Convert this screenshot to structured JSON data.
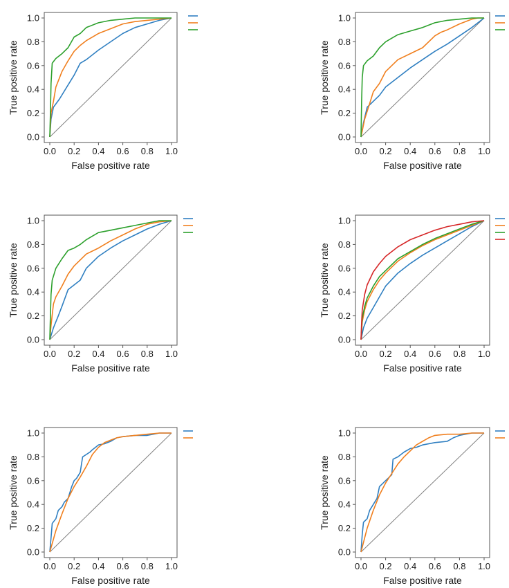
{
  "colors": {
    "blue": "#2f7fc1",
    "orange": "#f07f1e",
    "green": "#2ca02c",
    "red": "#d62728",
    "diagonal": "#808080"
  },
  "chart_data": [
    {
      "type": "line",
      "panel": "top-left",
      "xlabel": "False positive rate",
      "ylabel": "True positive rate",
      "xlim": [
        0,
        1
      ],
      "ylim": [
        0,
        1
      ],
      "xticks": [
        "0.0",
        "0.2",
        "0.4",
        "0.6",
        "0.8",
        "1.0"
      ],
      "yticks": [
        "0.0",
        "0.2",
        "0.4",
        "0.6",
        "0.8",
        "1.0"
      ],
      "grid": false,
      "legend": "right",
      "series": [
        {
          "color": "blue",
          "x": [
            0,
            0.01,
            0.03,
            0.08,
            0.14,
            0.2,
            0.25,
            0.3,
            0.4,
            0.5,
            0.6,
            0.7,
            0.8,
            0.9,
            1.0
          ],
          "y": [
            0,
            0.15,
            0.25,
            0.32,
            0.42,
            0.52,
            0.62,
            0.65,
            0.73,
            0.8,
            0.87,
            0.92,
            0.95,
            0.98,
            1.0
          ]
        },
        {
          "color": "orange",
          "x": [
            0,
            0.01,
            0.03,
            0.05,
            0.1,
            0.15,
            0.2,
            0.25,
            0.3,
            0.4,
            0.5,
            0.6,
            0.7,
            0.8,
            0.9,
            1.0
          ],
          "y": [
            0,
            0.2,
            0.3,
            0.42,
            0.55,
            0.64,
            0.72,
            0.77,
            0.81,
            0.87,
            0.91,
            0.95,
            0.97,
            0.98,
            0.99,
            1.0
          ]
        },
        {
          "color": "green",
          "x": [
            0,
            0.005,
            0.01,
            0.02,
            0.05,
            0.1,
            0.15,
            0.2,
            0.25,
            0.3,
            0.4,
            0.5,
            0.6,
            0.7,
            0.8,
            1.0
          ],
          "y": [
            0,
            0.2,
            0.45,
            0.62,
            0.66,
            0.7,
            0.75,
            0.84,
            0.87,
            0.92,
            0.96,
            0.98,
            0.99,
            1.0,
            1.0,
            1.0
          ]
        },
        {
          "color": "diagonal",
          "x": [
            0,
            1
          ],
          "y": [
            0,
            1
          ]
        }
      ]
    },
    {
      "type": "line",
      "panel": "top-right",
      "xlabel": "False positive rate",
      "ylabel": "True positive rate",
      "xlim": [
        0,
        1
      ],
      "ylim": [
        0,
        1
      ],
      "xticks": [
        "0.0",
        "0.2",
        "0.4",
        "0.6",
        "0.8",
        "1.0"
      ],
      "yticks": [
        "0.0",
        "0.2",
        "0.4",
        "0.6",
        "0.8",
        "1.0"
      ],
      "grid": false,
      "legend": "right",
      "series": [
        {
          "color": "blue",
          "x": [
            0,
            0.02,
            0.05,
            0.1,
            0.15,
            0.2,
            0.3,
            0.4,
            0.5,
            0.6,
            0.7,
            0.8,
            0.9,
            1.0
          ],
          "y": [
            0,
            0.12,
            0.25,
            0.3,
            0.35,
            0.42,
            0.5,
            0.58,
            0.65,
            0.72,
            0.78,
            0.85,
            0.92,
            1.0
          ]
        },
        {
          "color": "orange",
          "x": [
            0,
            0.03,
            0.07,
            0.1,
            0.15,
            0.2,
            0.25,
            0.3,
            0.4,
            0.5,
            0.6,
            0.65,
            0.7,
            0.8,
            0.9,
            0.95,
            1.0
          ],
          "y": [
            0,
            0.15,
            0.28,
            0.38,
            0.45,
            0.55,
            0.6,
            0.65,
            0.7,
            0.75,
            0.85,
            0.88,
            0.9,
            0.95,
            0.99,
            1.0,
            1.0
          ]
        },
        {
          "color": "green",
          "x": [
            0,
            0.005,
            0.01,
            0.02,
            0.05,
            0.1,
            0.15,
            0.2,
            0.25,
            0.3,
            0.4,
            0.5,
            0.6,
            0.7,
            0.8,
            0.9,
            1.0
          ],
          "y": [
            0,
            0.3,
            0.5,
            0.6,
            0.64,
            0.68,
            0.75,
            0.8,
            0.83,
            0.86,
            0.89,
            0.92,
            0.96,
            0.98,
            0.99,
            1.0,
            1.0
          ]
        },
        {
          "color": "diagonal",
          "x": [
            0,
            1
          ],
          "y": [
            0,
            1
          ]
        }
      ]
    },
    {
      "type": "line",
      "panel": "middle-left",
      "xlabel": "False positive rate",
      "ylabel": "True positive rate",
      "xlim": [
        0,
        1
      ],
      "ylim": [
        0,
        1
      ],
      "xticks": [
        "0.0",
        "0.2",
        "0.4",
        "0.6",
        "0.8",
        "1.0"
      ],
      "yticks": [
        "0.0",
        "0.2",
        "0.4",
        "0.6",
        "0.8",
        "1.0"
      ],
      "grid": false,
      "legend": "right",
      "series": [
        {
          "color": "blue",
          "x": [
            0,
            0.03,
            0.07,
            0.1,
            0.15,
            0.25,
            0.3,
            0.4,
            0.5,
            0.6,
            0.7,
            0.8,
            0.9,
            1.0
          ],
          "y": [
            0,
            0.1,
            0.2,
            0.28,
            0.42,
            0.5,
            0.6,
            0.7,
            0.77,
            0.83,
            0.88,
            0.93,
            0.97,
            1.0
          ]
        },
        {
          "color": "orange",
          "x": [
            0,
            0.01,
            0.03,
            0.05,
            0.1,
            0.15,
            0.2,
            0.25,
            0.3,
            0.4,
            0.5,
            0.6,
            0.7,
            0.8,
            0.9,
            1.0
          ],
          "y": [
            0,
            0.12,
            0.3,
            0.36,
            0.45,
            0.55,
            0.62,
            0.67,
            0.72,
            0.77,
            0.83,
            0.88,
            0.93,
            0.97,
            0.99,
            1.0
          ]
        },
        {
          "color": "green",
          "x": [
            0,
            0.005,
            0.01,
            0.02,
            0.05,
            0.1,
            0.15,
            0.2,
            0.25,
            0.3,
            0.4,
            0.5,
            0.6,
            0.7,
            0.8,
            0.9,
            1.0
          ],
          "y": [
            0,
            0.2,
            0.38,
            0.5,
            0.6,
            0.68,
            0.75,
            0.77,
            0.8,
            0.84,
            0.9,
            0.92,
            0.94,
            0.96,
            0.98,
            1.0,
            1.0
          ]
        },
        {
          "color": "diagonal",
          "x": [
            0,
            1
          ],
          "y": [
            0,
            1
          ]
        }
      ]
    },
    {
      "type": "line",
      "panel": "middle-right",
      "xlabel": "False positive rate",
      "ylabel": "True positive rate",
      "xlim": [
        0,
        1
      ],
      "ylim": [
        0,
        1
      ],
      "xticks": [
        "0.0",
        "0.2",
        "0.4",
        "0.6",
        "0.8",
        "1.0"
      ],
      "yticks": [
        "0.0",
        "0.2",
        "0.4",
        "0.6",
        "0.8",
        "1.0"
      ],
      "grid": false,
      "legend": "right",
      "series": [
        {
          "color": "blue",
          "x": [
            0,
            0.02,
            0.05,
            0.1,
            0.15,
            0.2,
            0.3,
            0.4,
            0.5,
            0.6,
            0.7,
            0.8,
            0.9,
            1.0
          ],
          "y": [
            0,
            0.1,
            0.18,
            0.27,
            0.36,
            0.45,
            0.56,
            0.64,
            0.71,
            0.77,
            0.83,
            0.89,
            0.95,
            1.0
          ]
        },
        {
          "color": "orange",
          "x": [
            0,
            0.01,
            0.03,
            0.05,
            0.1,
            0.15,
            0.2,
            0.3,
            0.4,
            0.5,
            0.6,
            0.7,
            0.8,
            0.9,
            1.0
          ],
          "y": [
            0,
            0.15,
            0.25,
            0.32,
            0.42,
            0.5,
            0.56,
            0.66,
            0.73,
            0.79,
            0.84,
            0.88,
            0.92,
            0.96,
            1.0
          ]
        },
        {
          "color": "green",
          "x": [
            0,
            0.01,
            0.03,
            0.05,
            0.1,
            0.15,
            0.2,
            0.3,
            0.4,
            0.5,
            0.6,
            0.7,
            0.8,
            0.9,
            1.0
          ],
          "y": [
            0,
            0.18,
            0.28,
            0.35,
            0.45,
            0.53,
            0.58,
            0.68,
            0.74,
            0.8,
            0.85,
            0.89,
            0.93,
            0.97,
            1.0
          ]
        },
        {
          "color": "red",
          "x": [
            0,
            0.005,
            0.01,
            0.03,
            0.05,
            0.1,
            0.15,
            0.2,
            0.3,
            0.4,
            0.5,
            0.6,
            0.7,
            0.8,
            0.9,
            1.0
          ],
          "y": [
            0,
            0.15,
            0.25,
            0.38,
            0.46,
            0.57,
            0.64,
            0.7,
            0.78,
            0.84,
            0.88,
            0.92,
            0.95,
            0.97,
            0.99,
            1.0
          ]
        },
        {
          "color": "diagonal",
          "x": [
            0,
            1
          ],
          "y": [
            0,
            1
          ]
        }
      ]
    },
    {
      "type": "line",
      "panel": "bottom-left",
      "xlabel": "False positive rate",
      "ylabel": "True positive rate",
      "xlim": [
        0,
        1
      ],
      "ylim": [
        0,
        1
      ],
      "xticks": [
        "0.0",
        "0.2",
        "0.4",
        "0.6",
        "0.8",
        "1.0"
      ],
      "yticks": [
        "0.0",
        "0.2",
        "0.4",
        "0.6",
        "0.8",
        "1.0"
      ],
      "grid": false,
      "legend": "right",
      "series": [
        {
          "color": "blue",
          "x": [
            0,
            0.01,
            0.02,
            0.05,
            0.07,
            0.1,
            0.12,
            0.15,
            0.18,
            0.2,
            0.22,
            0.25,
            0.27,
            0.3,
            0.33,
            0.35,
            0.4,
            0.45,
            0.5,
            0.55,
            0.6,
            0.7,
            0.8,
            0.85,
            0.9,
            1.0
          ],
          "y": [
            0,
            0.12,
            0.24,
            0.28,
            0.35,
            0.38,
            0.42,
            0.45,
            0.55,
            0.6,
            0.62,
            0.67,
            0.8,
            0.82,
            0.84,
            0.86,
            0.9,
            0.91,
            0.93,
            0.96,
            0.97,
            0.98,
            0.98,
            0.99,
            1.0,
            1.0
          ]
        },
        {
          "color": "orange",
          "x": [
            0,
            0.05,
            0.1,
            0.15,
            0.2,
            0.25,
            0.3,
            0.35,
            0.4,
            0.45,
            0.5,
            0.55,
            0.6,
            0.7,
            0.8,
            0.9,
            1.0
          ],
          "y": [
            0,
            0.18,
            0.32,
            0.45,
            0.55,
            0.63,
            0.72,
            0.82,
            0.88,
            0.92,
            0.94,
            0.96,
            0.97,
            0.98,
            0.99,
            1.0,
            1.0
          ]
        },
        {
          "color": "diagonal",
          "x": [
            0,
            1
          ],
          "y": [
            0,
            1
          ]
        }
      ]
    },
    {
      "type": "line",
      "panel": "bottom-right",
      "xlabel": "False positive rate",
      "ylabel": "True positive rate",
      "xlim": [
        0,
        1
      ],
      "ylim": [
        0,
        1
      ],
      "xticks": [
        "0.0",
        "0.2",
        "0.4",
        "0.6",
        "0.8",
        "1.0"
      ],
      "yticks": [
        "0.0",
        "0.2",
        "0.4",
        "0.6",
        "0.8",
        "1.0"
      ],
      "grid": false,
      "legend": "right",
      "series": [
        {
          "color": "blue",
          "x": [
            0,
            0.01,
            0.02,
            0.05,
            0.07,
            0.1,
            0.13,
            0.15,
            0.2,
            0.22,
            0.25,
            0.26,
            0.3,
            0.35,
            0.4,
            0.45,
            0.5,
            0.6,
            0.7,
            0.75,
            0.8,
            0.9,
            1.0
          ],
          "y": [
            0,
            0.15,
            0.25,
            0.28,
            0.35,
            0.4,
            0.45,
            0.55,
            0.6,
            0.62,
            0.65,
            0.78,
            0.8,
            0.84,
            0.87,
            0.88,
            0.9,
            0.92,
            0.93,
            0.96,
            0.98,
            1.0,
            1.0
          ]
        },
        {
          "color": "orange",
          "x": [
            0,
            0.05,
            0.1,
            0.15,
            0.2,
            0.25,
            0.3,
            0.35,
            0.4,
            0.45,
            0.5,
            0.55,
            0.6,
            0.7,
            0.8,
            0.9,
            1.0
          ],
          "y": [
            0,
            0.2,
            0.35,
            0.48,
            0.58,
            0.66,
            0.74,
            0.8,
            0.85,
            0.9,
            0.93,
            0.96,
            0.98,
            0.99,
            0.99,
            1.0,
            1.0
          ]
        },
        {
          "color": "diagonal",
          "x": [
            0,
            1
          ],
          "y": [
            0,
            1
          ]
        }
      ]
    }
  ]
}
